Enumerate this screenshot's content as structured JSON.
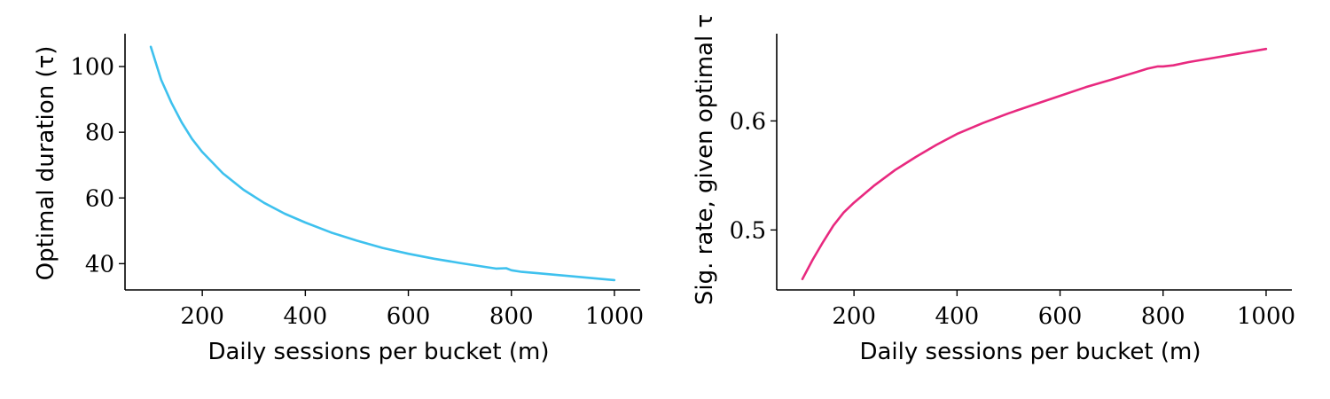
{
  "chart_data": [
    {
      "type": "line",
      "xlabel": "Daily sessions per bucket (m)",
      "ylabel": "Optimal duration (τ)",
      "xlim": [
        50,
        1050
      ],
      "ylim": [
        32,
        110
      ],
      "xticks": [
        200,
        400,
        600,
        800,
        1000
      ],
      "yticks": [
        40,
        60,
        80,
        100
      ],
      "xtick_labels": [
        "200",
        "400",
        "600",
        "800",
        "1000"
      ],
      "ytick_labels": [
        "40",
        "60",
        "80",
        "100"
      ],
      "grid": false,
      "series": [
        {
          "color": "#3ec1ee",
          "x": [
            100,
            120,
            140,
            160,
            180,
            200,
            240,
            280,
            320,
            360,
            400,
            450,
            500,
            550,
            600,
            650,
            700,
            750,
            770,
            790,
            800,
            820,
            850,
            900,
            950,
            1000
          ],
          "y": [
            106,
            96,
            89,
            83,
            78,
            74,
            67.5,
            62.5,
            58.5,
            55.2,
            52.5,
            49.5,
            47,
            44.8,
            43,
            41.5,
            40.2,
            39,
            38.5,
            38.6,
            38,
            37.5,
            37.1,
            36.4,
            35.7,
            35
          ]
        }
      ]
    },
    {
      "type": "line",
      "xlabel": "Daily sessions per bucket (m)",
      "ylabel": "Sig. rate, given optimal τ",
      "xlim": [
        50,
        1050
      ],
      "ylim": [
        0.445,
        0.68
      ],
      "xticks": [
        200,
        400,
        600,
        800,
        1000
      ],
      "yticks": [
        0.5,
        0.6
      ],
      "xtick_labels": [
        "200",
        "400",
        "600",
        "800",
        "1000"
      ],
      "ytick_labels": [
        "0.5",
        "0.6"
      ],
      "grid": false,
      "series": [
        {
          "color": "#e8297f",
          "x": [
            100,
            120,
            140,
            160,
            180,
            200,
            240,
            280,
            320,
            360,
            400,
            450,
            500,
            550,
            600,
            650,
            700,
            750,
            770,
            790,
            800,
            820,
            850,
            900,
            950,
            1000
          ],
          "y": [
            0.455,
            0.473,
            0.489,
            0.504,
            0.516,
            0.525,
            0.541,
            0.555,
            0.567,
            0.578,
            0.588,
            0.598,
            0.607,
            0.615,
            0.623,
            0.631,
            0.638,
            0.645,
            0.648,
            0.65,
            0.65,
            0.651,
            0.654,
            0.658,
            0.662,
            0.666
          ]
        }
      ]
    }
  ]
}
